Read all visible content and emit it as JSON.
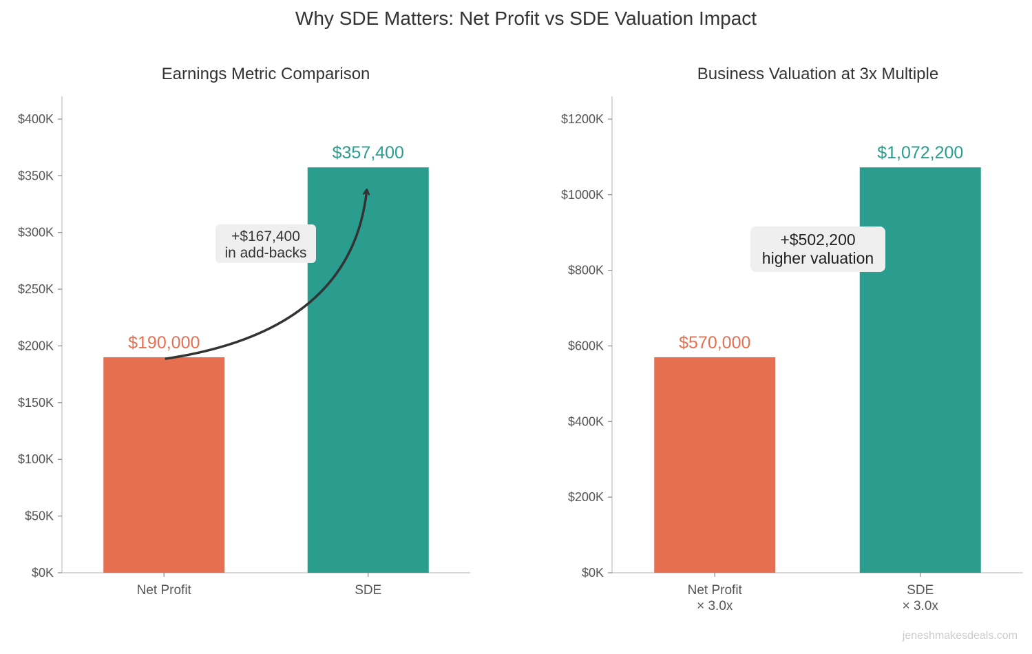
{
  "figure": {
    "title": "Why SDE Matters: Net Profit vs SDE Valuation Impact",
    "watermark": "jeneshmakesdeals.com"
  },
  "colors": {
    "net_profit": "#E76F51",
    "sde": "#2A9D8F",
    "axis": "#cccccc",
    "text": "#333333",
    "annotation_box": "#efefef",
    "arrow": "#333333"
  },
  "chart_data": [
    {
      "type": "bar",
      "title": "Earnings Metric Comparison",
      "categories": [
        "Net Profit",
        "SDE"
      ],
      "values": [
        190000,
        357400
      ],
      "value_labels": [
        "$190,000",
        "$357,400"
      ],
      "ylim": [
        0,
        420000
      ],
      "yticks": [
        0,
        50000,
        100000,
        150000,
        200000,
        250000,
        300000,
        350000,
        400000
      ],
      "ytick_labels": [
        "$0K",
        "$50K",
        "$100K",
        "$150K",
        "$200K",
        "$250K",
        "$300K",
        "$350K",
        "$400K"
      ],
      "annotation": {
        "lines": [
          "+$167,400",
          "in add-backs"
        ],
        "arrow_from_category": "Net Profit",
        "arrow_to_category": "SDE"
      }
    },
    {
      "type": "bar",
      "title": "Business Valuation at 3x Multiple",
      "categories": [
        "Net Profit\n× 3.0x",
        "SDE\n× 3.0x"
      ],
      "values": [
        570000,
        1072200
      ],
      "value_labels": [
        "$570,000",
        "$1,072,200"
      ],
      "ylim": [
        0,
        1260000
      ],
      "yticks": [
        0,
        200000,
        400000,
        600000,
        800000,
        1000000,
        1200000
      ],
      "ytick_labels": [
        "$0K",
        "$200K",
        "$400K",
        "$600K",
        "$800K",
        "$1000K",
        "$1200K"
      ],
      "annotation": {
        "lines": [
          "+$502,200",
          "higher valuation"
        ]
      }
    }
  ]
}
